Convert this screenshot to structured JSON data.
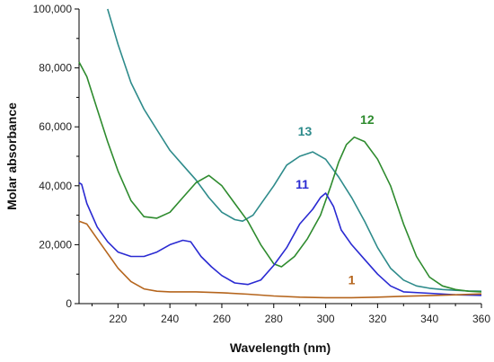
{
  "chart_data": {
    "type": "line",
    "title": "",
    "xlabel": "Wavelength (nm)",
    "ylabel": "Molar absorbance",
    "xlim": [
      205,
      360
    ],
    "ylim": [
      0,
      100000
    ],
    "x_ticks": [
      220,
      240,
      260,
      280,
      300,
      320,
      340,
      360
    ],
    "x_tick_labels": [
      "220",
      "240",
      "260",
      "280",
      "300",
      "320",
      "340",
      "360"
    ],
    "y_ticks": [
      0,
      20000,
      40000,
      60000,
      80000,
      100000
    ],
    "y_tick_labels": [
      "0",
      "20,000",
      "40,000",
      "60,000",
      "80,000",
      "100,000"
    ],
    "grid": false,
    "legend": "none (inline series labels)",
    "series": [
      {
        "name": "13",
        "color": "#2e8b8b",
        "label_at": [
          292,
          57000
        ],
        "points": [
          [
            216,
            100000
          ],
          [
            220,
            88000
          ],
          [
            225,
            75000
          ],
          [
            230,
            66000
          ],
          [
            235,
            59000
          ],
          [
            240,
            52000
          ],
          [
            245,
            47000
          ],
          [
            250,
            42000
          ],
          [
            255,
            36000
          ],
          [
            260,
            31000
          ],
          [
            265,
            28500
          ],
          [
            268,
            28000
          ],
          [
            272,
            30000
          ],
          [
            276,
            35000
          ],
          [
            280,
            40000
          ],
          [
            285,
            47000
          ],
          [
            290,
            50000
          ],
          [
            295,
            51500
          ],
          [
            300,
            49000
          ],
          [
            305,
            43000
          ],
          [
            310,
            36000
          ],
          [
            315,
            28000
          ],
          [
            320,
            19000
          ],
          [
            325,
            12000
          ],
          [
            330,
            8000
          ],
          [
            335,
            6000
          ],
          [
            340,
            5200
          ],
          [
            345,
            4800
          ],
          [
            350,
            4500
          ],
          [
            355,
            4300
          ],
          [
            360,
            4200
          ]
        ]
      },
      {
        "name": "12",
        "color": "#2e8b2e",
        "label_at": [
          316,
          61000
        ],
        "points": [
          [
            205,
            82000
          ],
          [
            208,
            77000
          ],
          [
            212,
            66000
          ],
          [
            216,
            55000
          ],
          [
            220,
            45000
          ],
          [
            225,
            35000
          ],
          [
            230,
            29500
          ],
          [
            235,
            29000
          ],
          [
            240,
            31000
          ],
          [
            245,
            36000
          ],
          [
            250,
            41000
          ],
          [
            255,
            43500
          ],
          [
            260,
            40000
          ],
          [
            265,
            34000
          ],
          [
            270,
            28000
          ],
          [
            275,
            20000
          ],
          [
            280,
            13500
          ],
          [
            283,
            12500
          ],
          [
            288,
            16000
          ],
          [
            293,
            22000
          ],
          [
            298,
            30000
          ],
          [
            302,
            40000
          ],
          [
            305,
            48000
          ],
          [
            308,
            54000
          ],
          [
            311,
            56500
          ],
          [
            315,
            55000
          ],
          [
            320,
            49000
          ],
          [
            325,
            40000
          ],
          [
            330,
            27000
          ],
          [
            335,
            16000
          ],
          [
            340,
            9000
          ],
          [
            345,
            6000
          ],
          [
            350,
            4800
          ],
          [
            355,
            4200
          ],
          [
            360,
            4000
          ]
        ]
      },
      {
        "name": "11",
        "color": "#2a2ad2",
        "label_at": [
          291,
          39000
        ],
        "points": [
          [
            205,
            41000
          ],
          [
            206,
            40500
          ],
          [
            208,
            34000
          ],
          [
            212,
            26000
          ],
          [
            216,
            21000
          ],
          [
            220,
            17500
          ],
          [
            225,
            16000
          ],
          [
            230,
            16000
          ],
          [
            235,
            17500
          ],
          [
            240,
            20000
          ],
          [
            245,
            21500
          ],
          [
            248,
            21000
          ],
          [
            252,
            16000
          ],
          [
            256,
            12500
          ],
          [
            260,
            9500
          ],
          [
            265,
            7000
          ],
          [
            270,
            6500
          ],
          [
            275,
            8000
          ],
          [
            280,
            13000
          ],
          [
            285,
            19000
          ],
          [
            290,
            27000
          ],
          [
            295,
            32000
          ],
          [
            298,
            36000
          ],
          [
            300,
            37500
          ],
          [
            303,
            33000
          ],
          [
            306,
            25000
          ],
          [
            310,
            20000
          ],
          [
            315,
            15000
          ],
          [
            320,
            10000
          ],
          [
            325,
            6000
          ],
          [
            330,
            4000
          ],
          [
            340,
            3500
          ],
          [
            350,
            3000
          ],
          [
            360,
            2800
          ]
        ]
      },
      {
        "name": "1",
        "color": "#b5651d",
        "label_at": [
          310,
          6500
        ],
        "points": [
          [
            205,
            28000
          ],
          [
            208,
            27000
          ],
          [
            212,
            22000
          ],
          [
            216,
            17000
          ],
          [
            220,
            12000
          ],
          [
            225,
            7500
          ],
          [
            230,
            5000
          ],
          [
            235,
            4200
          ],
          [
            240,
            4000
          ],
          [
            250,
            4000
          ],
          [
            260,
            3700
          ],
          [
            270,
            3200
          ],
          [
            280,
            2600
          ],
          [
            290,
            2200
          ],
          [
            300,
            2000
          ],
          [
            310,
            2000
          ],
          [
            320,
            2200
          ],
          [
            330,
            2500
          ],
          [
            340,
            2700
          ],
          [
            350,
            3000
          ],
          [
            360,
            3300
          ]
        ]
      }
    ]
  }
}
